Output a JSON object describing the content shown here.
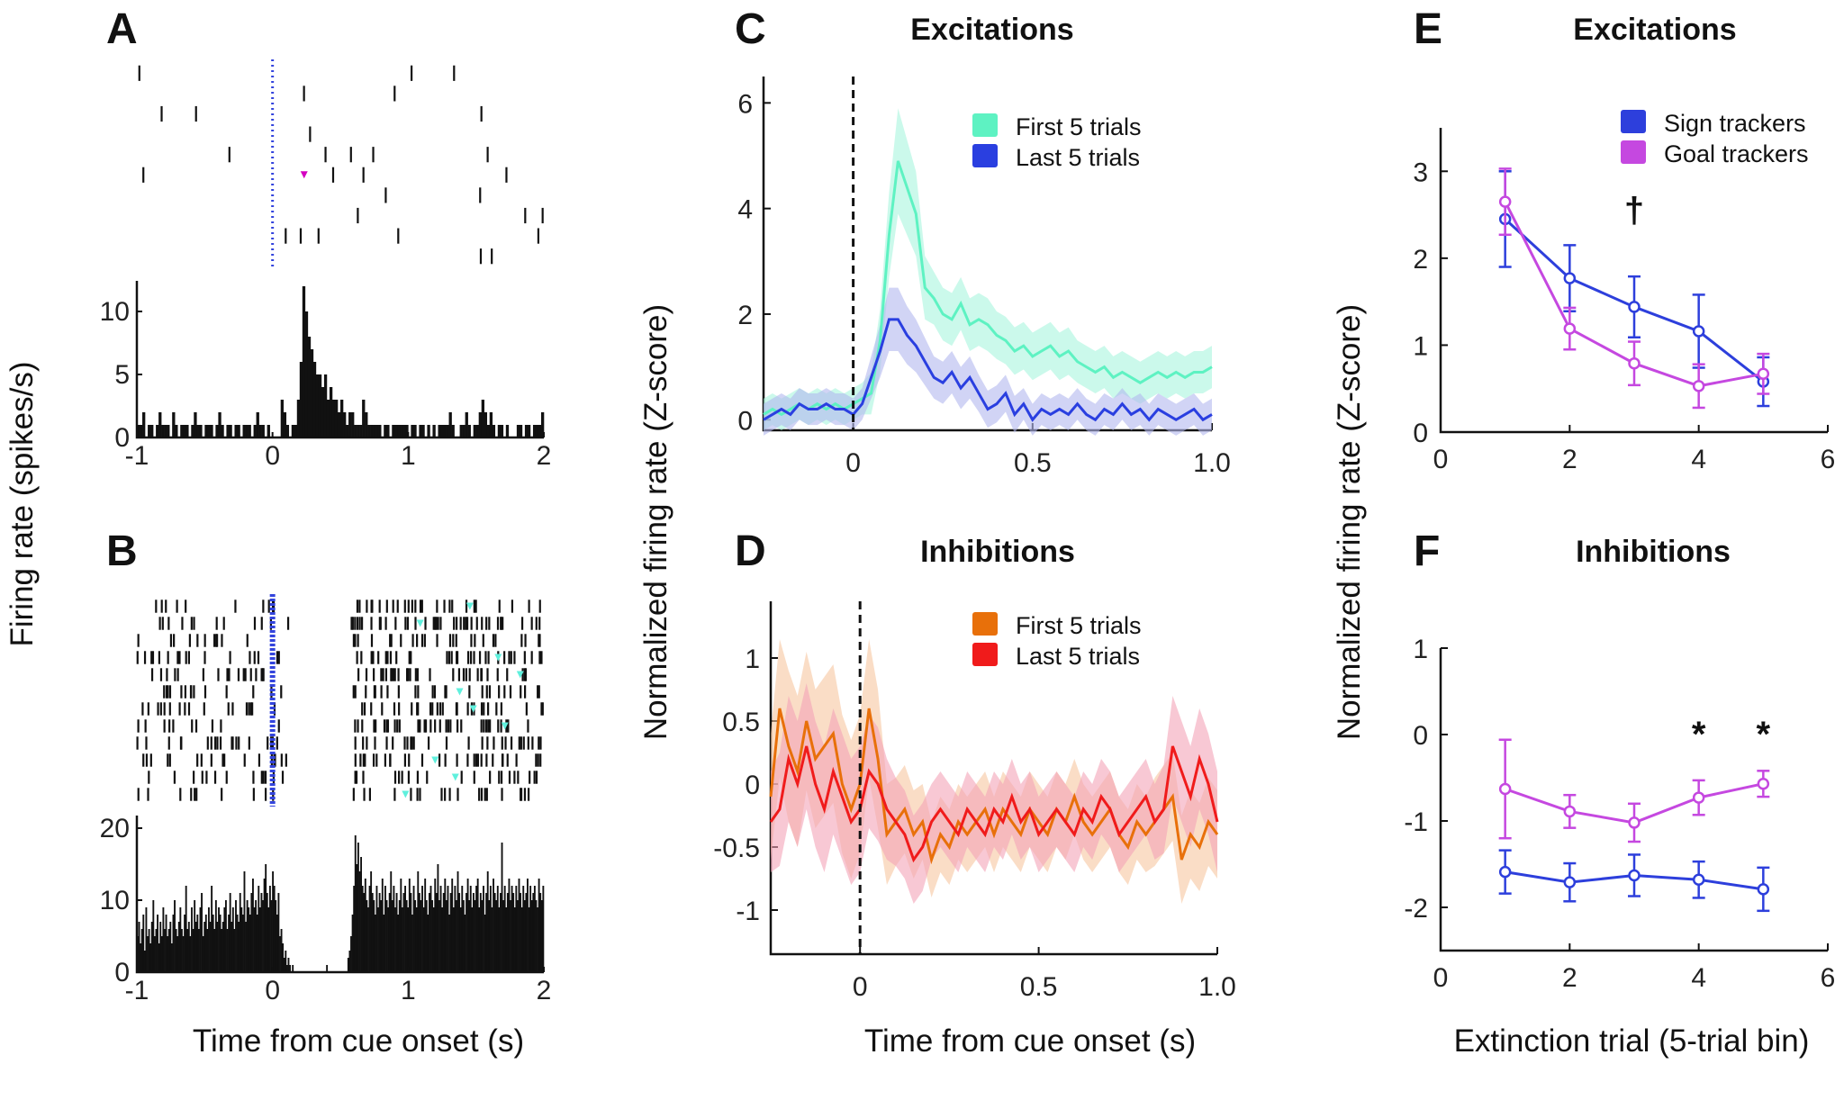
{
  "panel_letters": {
    "A": "A",
    "B": "B",
    "C": "C",
    "D": "D",
    "E": "E",
    "F": "F"
  },
  "shared_labels": {
    "left_ylabel": "Firing rate (spikes/s)",
    "left_xlabel": "Time from cue onset (s)",
    "mid_ylabel": "Normalized firing rate (Z-score)",
    "mid_xlabel": "Time from cue onset (s)",
    "right_ylabel": "Normalized firing rate (Z-score)",
    "right_xlabel": "Extinction trial (5-trial bin)"
  },
  "colors": {
    "first_exc": "#5ef2c2",
    "last_exc": "#2a3fe0",
    "first_inh": "#e8700a",
    "last_inh": "#f01b1b",
    "sign": "#2d3fdc",
    "goal": "#c548e0",
    "cue_line_raster": "#3344dd",
    "tri_A": "#d400c0",
    "tri_B": "#5ff0dd"
  },
  "chart_data": [
    {
      "id": "A",
      "type": "bar",
      "title": "",
      "raster": {
        "n_trials": 10,
        "t_range": [
          -1,
          2
        ],
        "cue_time": 0
      },
      "histogram": {
        "x_range": [
          -1,
          2
        ],
        "ylim": [
          0,
          12
        ],
        "ytick_labels": [
          "0",
          "5",
          "10"
        ],
        "yticks": [
          0,
          5,
          10
        ],
        "xticks": [
          -1,
          0,
          1,
          2
        ],
        "xtick_labels": [
          "-1",
          "0",
          "1",
          "2"
        ],
        "bin_width_s": 0.02,
        "values": [
          1,
          1,
          2,
          0,
          1,
          1,
          0,
          1,
          2,
          1,
          1,
          1,
          0,
          2,
          1,
          0,
          1,
          1,
          1,
          0,
          1,
          2,
          1,
          1,
          0,
          1,
          1,
          1,
          0,
          1,
          2,
          1,
          0,
          1,
          1,
          0,
          1,
          1,
          0,
          1,
          1,
          1,
          0,
          1,
          2,
          1,
          1,
          0,
          1,
          0,
          0,
          0,
          0,
          3,
          2,
          1,
          0,
          1,
          1,
          3,
          6,
          12,
          10,
          8,
          7,
          6,
          5,
          5,
          4,
          5,
          3,
          4,
          3,
          3,
          2,
          3,
          2,
          1,
          2,
          2,
          1,
          1,
          1,
          3,
          2,
          1,
          1,
          1,
          1,
          1,
          0,
          1,
          1,
          0,
          1,
          1,
          1,
          1,
          1,
          1,
          0,
          1,
          1,
          0,
          1,
          1,
          0,
          1,
          0,
          1,
          0,
          1,
          1,
          1,
          1,
          2,
          1,
          0,
          0,
          1,
          1,
          2,
          1,
          0,
          1,
          1,
          2,
          3,
          2,
          1,
          2,
          1,
          0,
          1,
          1,
          0,
          1,
          0,
          0,
          0,
          1,
          1,
          0,
          1,
          1,
          0,
          1,
          1,
          1,
          2
        ]
      }
    },
    {
      "id": "B",
      "type": "bar",
      "title": "",
      "raster": {
        "n_trials": 12,
        "t_range": [
          -1,
          2
        ],
        "cue_time": 0
      },
      "histogram": {
        "x_range": [
          -1,
          2
        ],
        "ylim": [
          0,
          21
        ],
        "ytick_labels": [
          "0",
          "10",
          "20"
        ],
        "yticks": [
          0,
          10,
          20
        ],
        "xticks": [
          -1,
          0,
          1,
          2
        ],
        "xtick_labels": [
          "-1",
          "0",
          "1",
          "2"
        ],
        "bin_width_s": 0.01,
        "values": [
          5,
          7,
          4,
          6,
          8,
          3,
          9,
          5,
          6,
          4,
          7,
          10,
          5,
          6,
          8,
          4,
          7,
          5,
          9,
          6,
          8,
          5,
          6,
          7,
          4,
          8,
          10,
          6,
          5,
          7,
          9,
          6,
          5,
          8,
          12,
          6,
          7,
          5,
          9,
          6,
          10,
          7,
          8,
          6,
          9,
          11,
          5,
          7,
          8,
          6,
          9,
          7,
          12,
          8,
          6,
          10,
          7,
          9,
          8,
          6,
          7,
          9,
          10,
          6,
          8,
          11,
          7,
          9,
          6,
          10,
          8,
          7,
          11,
          9,
          8,
          14,
          7,
          10,
          9,
          8,
          11,
          13,
          9,
          10,
          8,
          12,
          9,
          11,
          10,
          13,
          15,
          11,
          9,
          12,
          10,
          14,
          12,
          10,
          8,
          11,
          5,
          6,
          4,
          2,
          3,
          1,
          2,
          1,
          0,
          1,
          0,
          0,
          0,
          0,
          0,
          0,
          0,
          0,
          0,
          0,
          0,
          0,
          0,
          0,
          0,
          0,
          0,
          0,
          0,
          0,
          0,
          0,
          0,
          1,
          0,
          0,
          0,
          0,
          0,
          0,
          0,
          0,
          0,
          0,
          0,
          0,
          0,
          0,
          2,
          3,
          5,
          8,
          12,
          19,
          15,
          18,
          14,
          16,
          12,
          11,
          13,
          10,
          9,
          12,
          14,
          11,
          10,
          8,
          12,
          9,
          11,
          10,
          13,
          8,
          12,
          10,
          9,
          11,
          14,
          10,
          12,
          9,
          11,
          8,
          10,
          13,
          9,
          11,
          12,
          10,
          9,
          13,
          11,
          8,
          12,
          10,
          9,
          14,
          11,
          10,
          12,
          9,
          13,
          10,
          8,
          11,
          12,
          10,
          9,
          13,
          11,
          15,
          10,
          12,
          9,
          11,
          13,
          10,
          12,
          8,
          11,
          13,
          9,
          12,
          10,
          14,
          11,
          9,
          12,
          10,
          8,
          11,
          13,
          10,
          12,
          9,
          11,
          10,
          12,
          13,
          9,
          11,
          10,
          12,
          8,
          11,
          14,
          10,
          12,
          9,
          13,
          11,
          10,
          12,
          9,
          11,
          18,
          10,
          12,
          9,
          11,
          13,
          10,
          12,
          11,
          9,
          12,
          10,
          13,
          11,
          9,
          12,
          10,
          11,
          13,
          9,
          12,
          10,
          11,
          12,
          10,
          9,
          13,
          11,
          10,
          12
        ]
      }
    },
    {
      "id": "C",
      "type": "line",
      "title": "Excitations",
      "xlim": [
        -0.25,
        1.0
      ],
      "ylim": [
        -0.2,
        6.5
      ],
      "xticks": [
        0,
        0.5,
        1.0
      ],
      "xtick_labels": [
        "0",
        "0.5",
        "1.0"
      ],
      "yticks": [
        0,
        2,
        4,
        6
      ],
      "ytick_labels": [
        "0",
        "2",
        "4",
        "6"
      ],
      "vline": 0,
      "x_start": -0.25,
      "x_step": 0.025,
      "series": [
        {
          "name": "First 5 trials",
          "color": "#5ef2c2",
          "fill": "#a8f5dd",
          "values": [
            0.1,
            0.2,
            0.1,
            0.2,
            0.3,
            0.2,
            0.3,
            0.2,
            0.3,
            0.2,
            0.3,
            0.4,
            0.5,
            1.5,
            3.5,
            4.9,
            4.4,
            3.9,
            2.5,
            2.3,
            2.0,
            1.9,
            2.2,
            1.8,
            1.9,
            1.8,
            1.6,
            1.5,
            1.3,
            1.4,
            1.2,
            1.3,
            1.4,
            1.2,
            1.3,
            1.1,
            1.0,
            0.9,
            1.0,
            0.8,
            0.9,
            0.8,
            0.7,
            0.8,
            0.9,
            0.8,
            0.9,
            0.8,
            0.9,
            0.9,
            1.0
          ],
          "band": [
            0.3,
            0.3,
            0.3,
            0.3,
            0.3,
            0.3,
            0.3,
            0.3,
            0.3,
            0.3,
            0.3,
            0.3,
            0.4,
            0.6,
            0.8,
            1.0,
            0.9,
            0.8,
            0.6,
            0.5,
            0.5,
            0.5,
            0.5,
            0.5,
            0.5,
            0.5,
            0.45,
            0.45,
            0.45,
            0.45,
            0.45,
            0.45,
            0.45,
            0.45,
            0.45,
            0.4,
            0.4,
            0.4,
            0.4,
            0.4,
            0.4,
            0.4,
            0.4,
            0.4,
            0.4,
            0.4,
            0.4,
            0.4,
            0.4,
            0.4,
            0.4
          ]
        },
        {
          "name": "Last 5 trials",
          "color": "#2a3fe0",
          "fill": "#b3b8ee",
          "values": [
            0.0,
            0.1,
            0.2,
            0.1,
            0.3,
            0.2,
            0.2,
            0.3,
            0.2,
            0.2,
            0.1,
            0.3,
            0.8,
            1.3,
            1.9,
            1.9,
            1.6,
            1.4,
            1.1,
            0.8,
            0.7,
            0.9,
            0.6,
            0.8,
            0.5,
            0.2,
            0.3,
            0.5,
            0.1,
            0.3,
            0.0,
            0.2,
            0.1,
            0.2,
            0.1,
            0.3,
            0.1,
            0.0,
            0.2,
            0.1,
            0.3,
            0.1,
            0.2,
            0.0,
            0.2,
            0.1,
            0.0,
            0.1,
            0.2,
            0.0,
            0.1
          ],
          "band": [
            0.3,
            0.3,
            0.3,
            0.3,
            0.3,
            0.3,
            0.3,
            0.3,
            0.3,
            0.3,
            0.3,
            0.3,
            0.4,
            0.5,
            0.6,
            0.6,
            0.55,
            0.5,
            0.45,
            0.4,
            0.4,
            0.4,
            0.4,
            0.4,
            0.35,
            0.35,
            0.35,
            0.35,
            0.35,
            0.3,
            0.3,
            0.3,
            0.3,
            0.3,
            0.3,
            0.3,
            0.3,
            0.3,
            0.3,
            0.3,
            0.3,
            0.3,
            0.3,
            0.3,
            0.3,
            0.3,
            0.3,
            0.3,
            0.3,
            0.3,
            0.3
          ]
        }
      ]
    },
    {
      "id": "D",
      "type": "line",
      "title": "Inhibitions",
      "xlim": [
        -0.25,
        1.0
      ],
      "ylim": [
        -1.35,
        1.45
      ],
      "xticks": [
        0,
        0.5,
        1.0
      ],
      "xtick_labels": [
        "0",
        "0.5",
        "1.0"
      ],
      "yticks": [
        -1,
        -0.5,
        0,
        0.5,
        1
      ],
      "ytick_labels": [
        "-1",
        "-0.5",
        "0",
        "0.5",
        "1"
      ],
      "vline": 0,
      "x_start": -0.25,
      "x_step": 0.025,
      "series": [
        {
          "name": "First 5 trials",
          "color": "#e8700a",
          "fill": "#f7c7a0",
          "values": [
            -0.1,
            0.6,
            0.3,
            0.1,
            0.5,
            0.2,
            0.3,
            0.4,
            0.0,
            -0.2,
            0.0,
            0.6,
            0.2,
            -0.4,
            -0.3,
            -0.2,
            -0.4,
            -0.3,
            -0.6,
            -0.4,
            -0.5,
            -0.3,
            -0.4,
            -0.3,
            -0.2,
            -0.4,
            -0.2,
            -0.3,
            -0.4,
            -0.2,
            -0.3,
            -0.4,
            -0.2,
            -0.3,
            -0.1,
            -0.3,
            -0.4,
            -0.3,
            -0.2,
            -0.4,
            -0.5,
            -0.3,
            -0.4,
            -0.3,
            -0.2,
            -0.1,
            -0.6,
            -0.4,
            -0.5,
            -0.3,
            -0.4
          ],
          "band": [
            0.5,
            0.55,
            0.6,
            0.6,
            0.55,
            0.55,
            0.55,
            0.55,
            0.55,
            0.55,
            0.55,
            0.55,
            0.55,
            0.4,
            0.35,
            0.35,
            0.35,
            0.3,
            0.3,
            0.3,
            0.3,
            0.3,
            0.3,
            0.3,
            0.3,
            0.3,
            0.3,
            0.3,
            0.3,
            0.3,
            0.3,
            0.3,
            0.3,
            0.3,
            0.3,
            0.3,
            0.3,
            0.3,
            0.3,
            0.3,
            0.3,
            0.3,
            0.3,
            0.35,
            0.35,
            0.35,
            0.35,
            0.35,
            0.35,
            0.35,
            0.35
          ]
        },
        {
          "name": "Last 5 trials",
          "color": "#f01b1b",
          "fill": "#f4a3b8",
          "values": [
            -0.3,
            -0.2,
            0.2,
            0.0,
            0.3,
            0.0,
            -0.2,
            0.1,
            -0.1,
            -0.3,
            -0.2,
            0.1,
            0.0,
            -0.2,
            -0.3,
            -0.4,
            -0.6,
            -0.5,
            -0.3,
            -0.2,
            -0.3,
            -0.4,
            -0.2,
            -0.3,
            -0.4,
            -0.2,
            -0.3,
            -0.1,
            -0.3,
            -0.2,
            -0.4,
            -0.3,
            -0.2,
            -0.3,
            -0.4,
            -0.2,
            -0.3,
            -0.1,
            -0.2,
            -0.4,
            -0.3,
            -0.2,
            -0.1,
            -0.3,
            -0.2,
            0.3,
            0.1,
            -0.1,
            0.2,
            0.0,
            -0.3
          ],
          "band": [
            0.4,
            0.45,
            0.5,
            0.5,
            0.5,
            0.5,
            0.5,
            0.5,
            0.5,
            0.5,
            0.5,
            0.45,
            0.45,
            0.4,
            0.35,
            0.35,
            0.35,
            0.35,
            0.3,
            0.3,
            0.3,
            0.3,
            0.3,
            0.3,
            0.3,
            0.3,
            0.3,
            0.3,
            0.3,
            0.3,
            0.3,
            0.3,
            0.3,
            0.3,
            0.3,
            0.3,
            0.3,
            0.3,
            0.3,
            0.3,
            0.3,
            0.3,
            0.3,
            0.3,
            0.35,
            0.4,
            0.4,
            0.4,
            0.4,
            0.4,
            0.4
          ]
        }
      ]
    },
    {
      "id": "E",
      "type": "line",
      "title": "Excitations",
      "xlim": [
        0,
        6
      ],
      "ylim": [
        0,
        3.5
      ],
      "xticks": [
        0,
        2,
        4,
        6
      ],
      "xtick_labels": [
        "0",
        "2",
        "4",
        "6"
      ],
      "yticks": [
        0,
        1,
        2,
        3
      ],
      "ytick_labels": [
        "0",
        "1",
        "2",
        "3"
      ],
      "x": [
        1,
        2,
        3,
        4,
        5
      ],
      "series": [
        {
          "name": "Sign trackers",
          "color": "#2d3fdc",
          "values": [
            2.45,
            1.77,
            1.44,
            1.16,
            0.58
          ],
          "err": [
            0.55,
            0.38,
            0.35,
            0.42,
            0.28
          ]
        },
        {
          "name": "Goal trackers",
          "color": "#c548e0",
          "values": [
            2.65,
            1.19,
            0.79,
            0.53,
            0.67
          ],
          "err": [
            0.38,
            0.24,
            0.25,
            0.25,
            0.23
          ]
        }
      ],
      "annotations": [
        {
          "x": 3,
          "y": 2.6,
          "text": "†"
        }
      ]
    },
    {
      "id": "F",
      "type": "line",
      "title": "Inhibitions",
      "xlim": [
        0,
        6
      ],
      "ylim": [
        -2.5,
        1
      ],
      "xticks": [
        0,
        2,
        4,
        6
      ],
      "xtick_labels": [
        "0",
        "2",
        "4",
        "6"
      ],
      "yticks": [
        -2,
        -1,
        0,
        1
      ],
      "ytick_labels": [
        "-2",
        "-1",
        "0",
        "1"
      ],
      "x": [
        1,
        2,
        3,
        4,
        5
      ],
      "series": [
        {
          "name": "Sign trackers",
          "color": "#2d3fdc",
          "values": [
            -1.59,
            -1.71,
            -1.63,
            -1.68,
            -1.79
          ],
          "err": [
            0.25,
            0.22,
            0.24,
            0.21,
            0.25
          ]
        },
        {
          "name": "Goal trackers",
          "color": "#c548e0",
          "values": [
            -0.63,
            -0.89,
            -1.02,
            -0.73,
            -0.57
          ],
          "err": [
            0.57,
            0.19,
            0.22,
            0.2,
            0.15
          ]
        }
      ],
      "annotations": [
        {
          "x": 4,
          "y": 0.05,
          "text": "*"
        },
        {
          "x": 5,
          "y": 0.05,
          "text": "*"
        }
      ]
    }
  ]
}
